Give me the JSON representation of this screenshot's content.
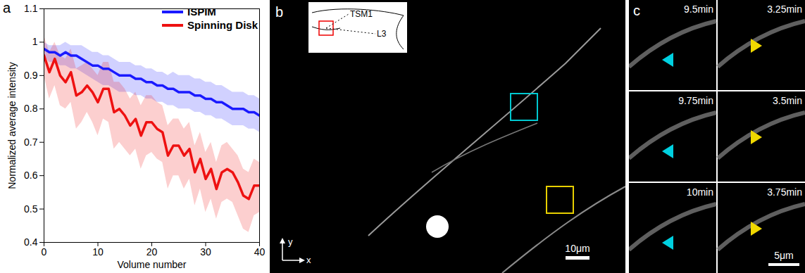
{
  "chart_data": {
    "type": "line",
    "x_label": "Volume number",
    "y_label": "Normalized average intensity",
    "x": [
      0,
      1,
      2,
      3,
      4,
      5,
      6,
      7,
      8,
      9,
      10,
      11,
      12,
      13,
      14,
      15,
      16,
      17,
      18,
      19,
      20,
      21,
      22,
      23,
      24,
      25,
      26,
      27,
      28,
      29,
      30,
      31,
      32,
      33,
      34,
      35,
      36,
      37,
      38,
      39,
      40
    ],
    "series": [
      {
        "name": "ISPIM",
        "color": "#1a1aff",
        "values": [
          0.98,
          0.97,
          0.97,
          0.96,
          0.97,
          0.96,
          0.96,
          0.95,
          0.94,
          0.93,
          0.93,
          0.92,
          0.92,
          0.91,
          0.9,
          0.9,
          0.9,
          0.89,
          0.89,
          0.88,
          0.88,
          0.87,
          0.87,
          0.86,
          0.86,
          0.85,
          0.85,
          0.85,
          0.84,
          0.84,
          0.83,
          0.83,
          0.82,
          0.82,
          0.81,
          0.8,
          0.8,
          0.8,
          0.79,
          0.79,
          0.78
        ],
        "lower": [
          0.96,
          0.94,
          0.94,
          0.93,
          0.93,
          0.92,
          0.92,
          0.91,
          0.9,
          0.89,
          0.88,
          0.87,
          0.87,
          0.86,
          0.85,
          0.85,
          0.85,
          0.84,
          0.84,
          0.83,
          0.83,
          0.82,
          0.82,
          0.81,
          0.81,
          0.8,
          0.8,
          0.8,
          0.79,
          0.79,
          0.78,
          0.78,
          0.77,
          0.77,
          0.76,
          0.75,
          0.75,
          0.75,
          0.74,
          0.74,
          0.73
        ],
        "upper": [
          1.0,
          0.99,
          0.99,
          0.99,
          1.0,
          0.99,
          0.99,
          0.99,
          0.98,
          0.97,
          0.97,
          0.96,
          0.96,
          0.95,
          0.94,
          0.94,
          0.94,
          0.93,
          0.93,
          0.92,
          0.92,
          0.91,
          0.91,
          0.9,
          0.91,
          0.9,
          0.9,
          0.9,
          0.89,
          0.89,
          0.88,
          0.88,
          0.87,
          0.87,
          0.86,
          0.85,
          0.85,
          0.85,
          0.84,
          0.84,
          0.83
        ]
      },
      {
        "name": "Spinning Disk",
        "color": "#ee1111",
        "values": [
          0.96,
          0.91,
          0.95,
          0.9,
          0.88,
          0.91,
          0.84,
          0.85,
          0.87,
          0.85,
          0.82,
          0.86,
          0.86,
          0.79,
          0.8,
          0.78,
          0.75,
          0.77,
          0.72,
          0.76,
          0.76,
          0.74,
          0.73,
          0.66,
          0.69,
          0.69,
          0.66,
          0.68,
          0.61,
          0.65,
          0.59,
          0.62,
          0.56,
          0.61,
          0.62,
          0.61,
          0.58,
          0.54,
          0.53,
          0.57,
          0.57
        ],
        "lower": [
          0.9,
          0.83,
          0.87,
          0.81,
          0.8,
          0.82,
          0.74,
          0.76,
          0.79,
          0.76,
          0.72,
          0.77,
          0.76,
          0.68,
          0.7,
          0.68,
          0.66,
          0.68,
          0.62,
          0.66,
          0.67,
          0.65,
          0.64,
          0.56,
          0.6,
          0.6,
          0.56,
          0.59,
          0.51,
          0.56,
          0.49,
          0.53,
          0.47,
          0.52,
          0.53,
          0.52,
          0.48,
          0.44,
          0.43,
          0.48,
          0.49
        ],
        "upper": [
          1.02,
          0.97,
          1.0,
          0.96,
          0.95,
          0.98,
          0.92,
          0.93,
          0.94,
          0.92,
          0.9,
          0.94,
          0.94,
          0.88,
          0.88,
          0.86,
          0.83,
          0.85,
          0.81,
          0.84,
          0.84,
          0.82,
          0.81,
          0.75,
          0.77,
          0.77,
          0.74,
          0.76,
          0.69,
          0.73,
          0.67,
          0.7,
          0.64,
          0.69,
          0.7,
          0.68,
          0.66,
          0.62,
          0.61,
          0.65,
          0.64
        ]
      }
    ],
    "xlim": [
      0,
      40
    ],
    "xticks": [
      0,
      10,
      20,
      30,
      40
    ],
    "ylim": [
      0.4,
      1.1
    ],
    "yticks": [
      0.4,
      0.5,
      0.6,
      0.7,
      0.8,
      0.9,
      1,
      1.1
    ],
    "legend": "upper right",
    "grid": false
  },
  "figure": {
    "panel_a": {
      "label": "a"
    },
    "panel_b": {
      "label": "b",
      "inset_labels": [
        "TSM1",
        "L3"
      ],
      "axis_labels": [
        "y",
        "x"
      ],
      "scale_bar": "10μm"
    },
    "panel_c": {
      "label": "c",
      "frames": [
        [
          "9.5min",
          "3.25min"
        ],
        [
          "9.75min",
          "3.5min"
        ],
        [
          "10min",
          "3.75min"
        ]
      ],
      "scale_bar": "5μm"
    }
  }
}
